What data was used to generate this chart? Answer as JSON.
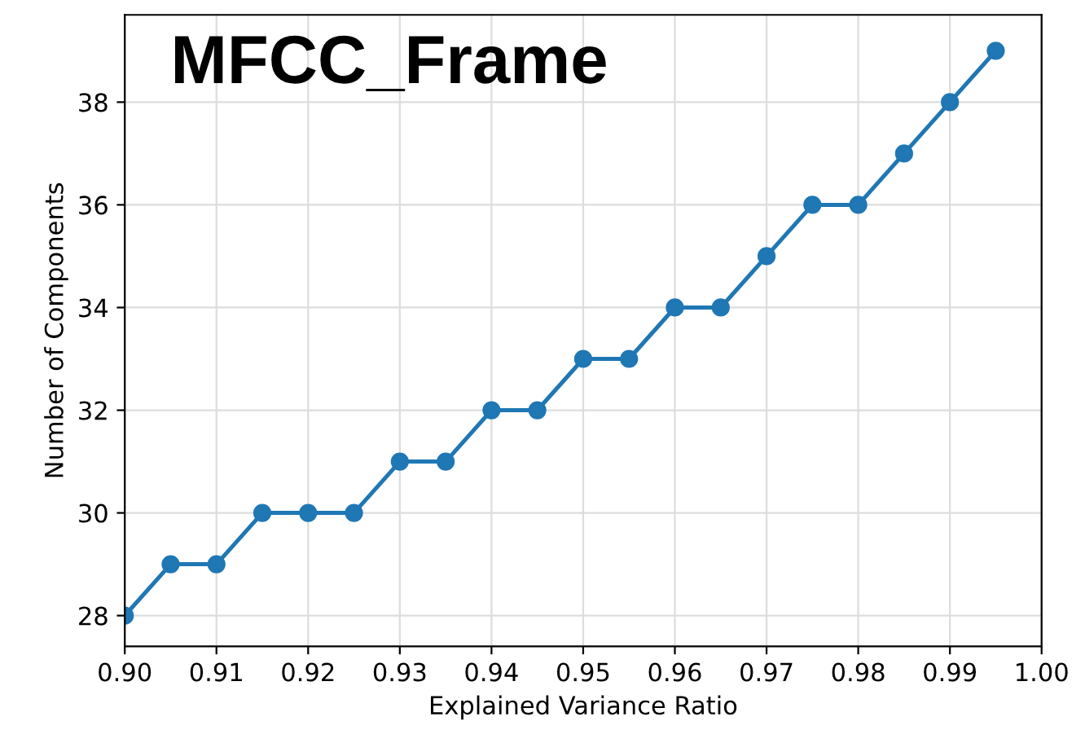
{
  "chart_data": {
    "type": "line",
    "title": "MFCC_Frame",
    "xlabel": "Explained Variance Ratio",
    "ylabel": "Number of Components",
    "x": [
      0.9,
      0.905,
      0.91,
      0.915,
      0.92,
      0.925,
      0.93,
      0.935,
      0.94,
      0.945,
      0.95,
      0.955,
      0.96,
      0.965,
      0.97,
      0.975,
      0.98,
      0.985,
      0.99,
      0.995
    ],
    "series": [
      {
        "color": "#1f77b4",
        "values": [
          28,
          29,
          29,
          30,
          30,
          30,
          31,
          31,
          32,
          32,
          33,
          33,
          34,
          34,
          35,
          36,
          36,
          37,
          38,
          39
        ]
      }
    ],
    "xlim": [
      0.9,
      1.0
    ],
    "xticks": [
      {
        "value": 0.9,
        "label": "0.90"
      },
      {
        "value": 0.91,
        "label": "0.91"
      },
      {
        "value": 0.92,
        "label": "0.92"
      },
      {
        "value": 0.93,
        "label": "0.93"
      },
      {
        "value": 0.94,
        "label": "0.94"
      },
      {
        "value": 0.95,
        "label": "0.95"
      },
      {
        "value": 0.96,
        "label": "0.96"
      },
      {
        "value": 0.97,
        "label": "0.97"
      },
      {
        "value": 0.98,
        "label": "0.98"
      },
      {
        "value": 0.99,
        "label": "0.99"
      },
      {
        "value": 1.0,
        "label": "1.00"
      }
    ],
    "ylim": [
      27.4,
      39.7
    ],
    "yticks": [
      28,
      30,
      32,
      34,
      36,
      38
    ],
    "grid": true,
    "marker": "circle",
    "line_style": "solid"
  }
}
